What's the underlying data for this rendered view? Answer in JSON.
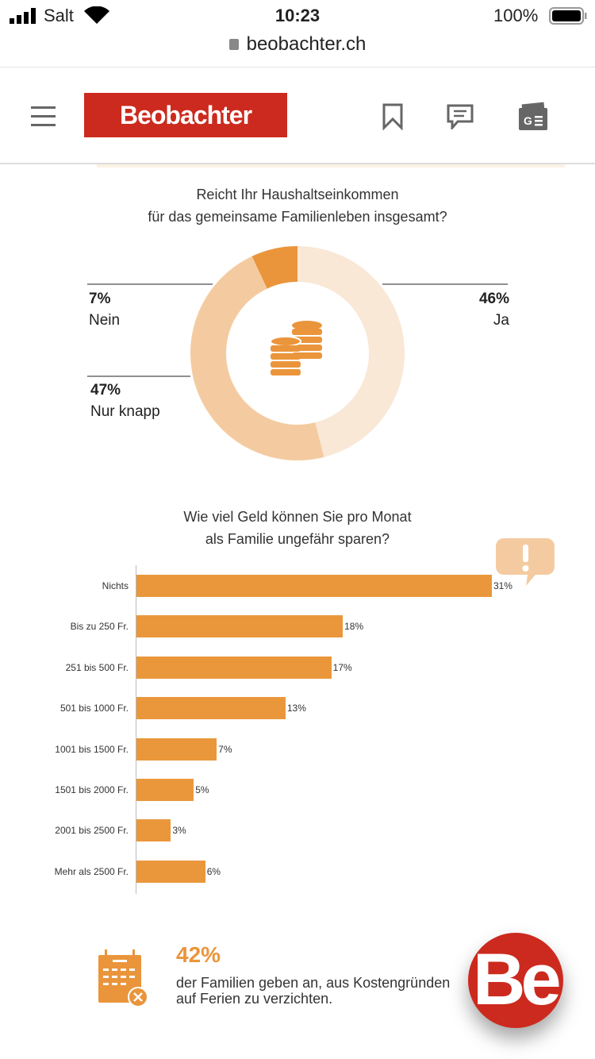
{
  "status": {
    "carrier": "Salt",
    "time": "10:23",
    "battery": "100%"
  },
  "browser": {
    "url": "beobachter.ch"
  },
  "header": {
    "logo": "Beobachter"
  },
  "donut": {
    "question_line1": "Reicht Ihr Haushaltseinkommen",
    "question_line2": "für das gemeinsame Familienleben insgesamt?",
    "slices": [
      {
        "label": "Ja",
        "pct": "46%",
        "value": 46,
        "color": "#f9e8d6"
      },
      {
        "label": "Nur knapp",
        "pct": "47%",
        "value": 47,
        "color": "#f4cba0"
      },
      {
        "label": "Nein",
        "pct": "7%",
        "value": 7,
        "color": "#ea953b"
      }
    ]
  },
  "chart_data": {
    "type": "bar",
    "title": "Wie viel Geld können Sie pro Monat als Familie ungefähr sparen?",
    "title_line1": "Wie viel Geld können Sie pro Monat",
    "title_line2": "als Familie ungefähr sparen?",
    "categories": [
      "Nichts",
      "Bis zu 250 Fr.",
      "251 bis 500 Fr.",
      "501 bis 1000 Fr.",
      "1001 bis 1500 Fr.",
      "1501 bis 2000 Fr.",
      "2001 bis 2500 Fr.",
      "Mehr als 2500 Fr."
    ],
    "values": [
      31,
      18,
      17,
      13,
      7,
      5,
      3,
      6
    ],
    "labels": [
      "31%",
      "18%",
      "17%",
      "13%",
      "7%",
      "5%",
      "3%",
      "6%"
    ],
    "color": "#ea973c",
    "orientation": "horizontal"
  },
  "fact": {
    "value": "42%",
    "line1": "der Familien geben an, aus Kostengründen",
    "line2": "auf Ferien zu verzichten."
  },
  "badge": {
    "text": "Be"
  }
}
